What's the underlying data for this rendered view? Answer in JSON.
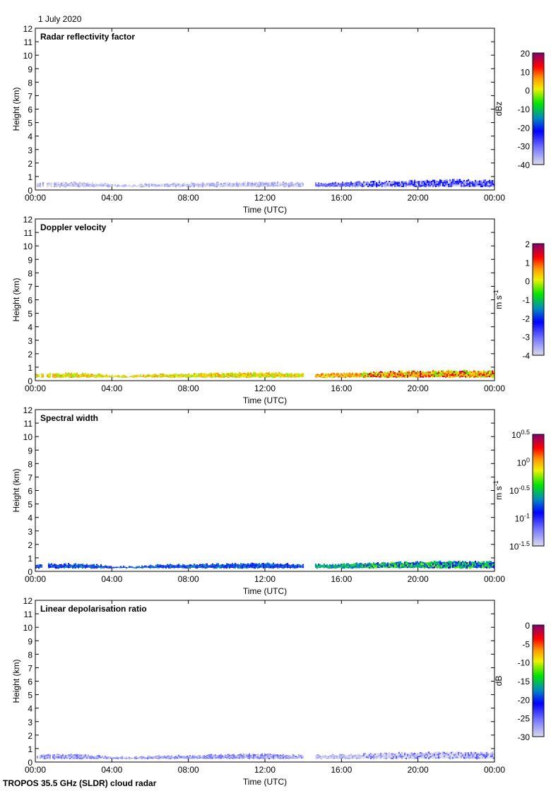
{
  "header": {
    "date": "1 July 2020"
  },
  "footer": {
    "instrument": "TROPOS 35.5 GHz (SLDR) cloud radar"
  },
  "chart_data": [
    {
      "type": "heatmap",
      "title": "Radar reflectivity factor",
      "xlabel": "Time (UTC)",
      "ylabel": "Height (km)",
      "ylim": [
        0,
        12
      ],
      "yticks": [
        "0",
        "1",
        "2",
        "3",
        "4",
        "5",
        "6",
        "7",
        "8",
        "9",
        "10",
        "11",
        "12"
      ],
      "xticks": [
        "00:00",
        "04:00",
        "08:00",
        "12:00",
        "16:00",
        "20:00",
        "00:00"
      ],
      "colorbar": {
        "unit": "dBz",
        "range": [
          -40,
          20
        ],
        "labels": [
          "20",
          "10",
          "0",
          "-10",
          "-20",
          "-30",
          "-40"
        ]
      },
      "layer": {
        "hours": [
          0,
          1,
          2,
          3,
          4,
          5,
          6,
          8,
          10,
          12,
          13,
          14,
          14.5,
          16,
          18,
          20,
          22,
          24
        ],
        "top_km": [
          0.5,
          0.55,
          0.55,
          0.5,
          0.4,
          0.35,
          0.45,
          0.5,
          0.55,
          0.6,
          0.55,
          0.5,
          null,
          0.55,
          0.65,
          0.7,
          0.75,
          0.7
        ],
        "base_km": 0.2,
        "gap_hours": [
          14.0,
          14.6
        ]
      },
      "typical_value": {
        "before_14h": -38,
        "after_14h": -30
      }
    },
    {
      "type": "heatmap",
      "title": "Doppler velocity",
      "xlabel": "Time (UTC)",
      "ylabel": "Height (km)",
      "ylim": [
        0,
        12
      ],
      "yticks": [
        "0",
        "1",
        "2",
        "3",
        "4",
        "5",
        "6",
        "7",
        "8",
        "9",
        "10",
        "11",
        "12"
      ],
      "xticks": [
        "00:00",
        "04:00",
        "08:00",
        "12:00",
        "16:00",
        "20:00",
        "00:00"
      ],
      "colorbar": {
        "unit": "m s",
        "unit_sup": "-1",
        "range": [
          -4,
          2
        ],
        "labels": [
          "2",
          "1",
          "0",
          "-1",
          "-2",
          "-3",
          "-4"
        ]
      },
      "typical_value": {
        "before_14h": 0.2,
        "after_14h": 0.5
      }
    },
    {
      "type": "heatmap",
      "title": "Spectral width",
      "xlabel": "Time (UTC)",
      "ylabel": "Height (km)",
      "ylim": [
        0,
        12
      ],
      "yticks": [
        "0",
        "1",
        "2",
        "3",
        "4",
        "5",
        "6",
        "7",
        "8",
        "9",
        "10",
        "11",
        "12"
      ],
      "xticks": [
        "00:00",
        "04:00",
        "08:00",
        "12:00",
        "16:00",
        "20:00",
        "00:00"
      ],
      "colorbar": {
        "unit": "m s",
        "unit_sup": "-1",
        "range": [
          -1.5,
          0.5
        ],
        "log": true,
        "labels": [
          {
            "base": "10",
            "exp": "0.5"
          },
          {
            "base": "10",
            "exp": "0"
          },
          {
            "base": "10",
            "exp": "-0.5"
          },
          {
            "base": "10",
            "exp": "-1"
          },
          {
            "base": "10",
            "exp": "-1.5"
          }
        ]
      },
      "typical_value": {
        "before_14h": -0.8,
        "after_14h": -0.6
      }
    },
    {
      "type": "heatmap",
      "title": "Linear depolarisation ratio",
      "xlabel": "Time (UTC)",
      "ylabel": "Height (km)",
      "ylim": [
        0,
        12
      ],
      "yticks": [
        "0",
        "1",
        "2",
        "3",
        "4",
        "5",
        "6",
        "7",
        "8",
        "9",
        "10",
        "11",
        "12"
      ],
      "xticks": [
        "00:00",
        "04:00",
        "08:00",
        "12:00",
        "16:00",
        "20:00",
        "00:00"
      ],
      "colorbar": {
        "unit": "dB",
        "range": [
          -30,
          0
        ],
        "labels": [
          "0",
          "-5",
          "-10",
          "-15",
          "-20",
          "-25",
          "-30"
        ]
      },
      "typical_value": {
        "before_14h": -27,
        "after_14h": -29
      }
    }
  ]
}
